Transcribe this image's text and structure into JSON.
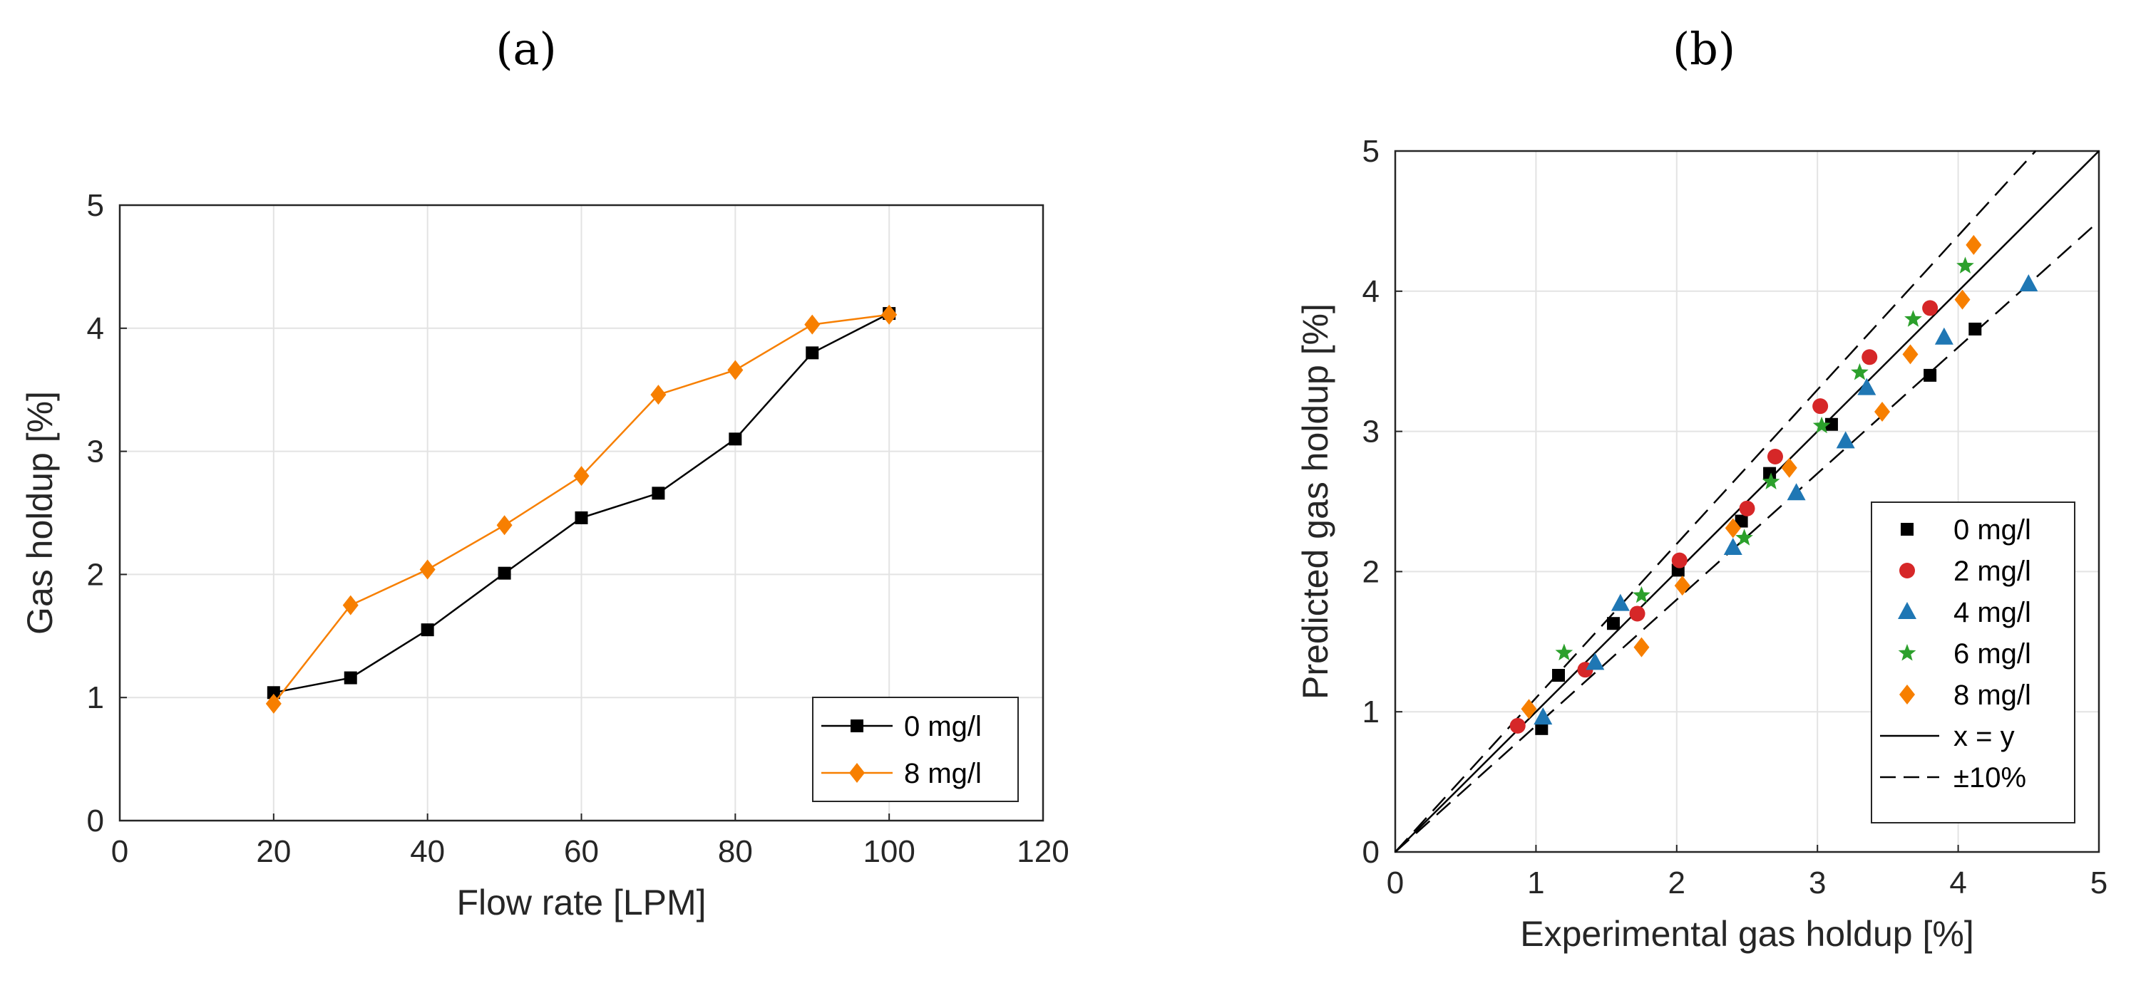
{
  "panels": {
    "a": "(a)",
    "b": "(b)"
  },
  "chart_data": [
    {
      "id": "a",
      "type": "line",
      "title": "",
      "xlabel": "Flow rate [LPM]",
      "ylabel": "Gas holdup [%]",
      "xlim": [
        0,
        120
      ],
      "ylim": [
        0,
        5
      ],
      "xticks": [
        0,
        20,
        40,
        60,
        80,
        100,
        120
      ],
      "yticks": [
        0,
        1,
        2,
        3,
        4,
        5
      ],
      "xtick_labels": [
        "0",
        "20",
        "40",
        "60",
        "80",
        "100",
        "120"
      ],
      "ytick_labels": [
        "0",
        "1",
        "2",
        "3",
        "4",
        "5"
      ],
      "grid": true,
      "legend_position": "bottom-right",
      "x": [
        20,
        30,
        40,
        50,
        60,
        70,
        80,
        90,
        100
      ],
      "series": [
        {
          "name": "0 mg/l",
          "color": "#000000",
          "marker": "square",
          "values": [
            1.04,
            1.16,
            1.55,
            2.01,
            2.46,
            2.66,
            3.1,
            3.8,
            4.12
          ]
        },
        {
          "name": "8 mg/l",
          "color": "#F77F00",
          "marker": "diamond",
          "values": [
            0.95,
            1.75,
            2.04,
            2.4,
            2.8,
            3.46,
            3.66,
            4.03,
            4.11
          ]
        }
      ]
    },
    {
      "id": "b",
      "type": "scatter",
      "title": "",
      "xlabel": "Experimental gas holdup [%]",
      "ylabel": "Predicted gas holdup [%]",
      "xlim": [
        0,
        5
      ],
      "ylim": [
        0,
        5
      ],
      "xticks": [
        0,
        1,
        2,
        3,
        4,
        5
      ],
      "yticks": [
        0,
        1,
        2,
        3,
        4,
        5
      ],
      "xtick_labels": [
        "0",
        "1",
        "2",
        "3",
        "4",
        "5"
      ],
      "ytick_labels": [
        "0",
        "1",
        "2",
        "3",
        "4",
        "5"
      ],
      "grid": true,
      "legend_position": "bottom-right",
      "series": [
        {
          "name": "0 mg/l",
          "color": "#000000",
          "marker": "square",
          "x": [
            1.04,
            1.16,
            1.55,
            2.01,
            2.46,
            2.66,
            3.1,
            3.8,
            4.12
          ],
          "y": [
            0.88,
            1.26,
            1.63,
            2.01,
            2.36,
            2.7,
            3.05,
            3.4,
            3.73
          ]
        },
        {
          "name": "2 mg/l",
          "color": "#D62728",
          "marker": "circle",
          "x": [
            0.87,
            1.35,
            1.72,
            2.02,
            2.5,
            2.7,
            3.02,
            3.37,
            3.8
          ],
          "y": [
            0.9,
            1.3,
            1.7,
            2.08,
            2.45,
            2.82,
            3.18,
            3.53,
            3.88
          ]
        },
        {
          "name": "4 mg/l",
          "color": "#1F77B4",
          "marker": "triangle",
          "x": [
            1.05,
            1.42,
            1.6,
            2.4,
            2.85,
            3.2,
            3.35,
            3.9,
            4.5
          ],
          "y": [
            0.96,
            1.35,
            1.77,
            2.17,
            2.56,
            2.93,
            3.31,
            3.67,
            4.05
          ]
        },
        {
          "name": "6 mg/l",
          "color": "#2CA02C",
          "marker": "star",
          "x": [
            1.2,
            1.75,
            2.48,
            2.67,
            3.03,
            3.3,
            3.68,
            4.05
          ],
          "y": [
            1.42,
            1.83,
            2.24,
            2.64,
            3.04,
            3.42,
            3.8,
            4.18
          ]
        },
        {
          "name": "8 mg/l",
          "color": "#F77F00",
          "marker": "diamond",
          "x": [
            0.95,
            1.75,
            2.04,
            2.4,
            2.8,
            3.46,
            3.66,
            4.03,
            4.11
          ],
          "y": [
            1.02,
            1.46,
            1.9,
            2.31,
            2.74,
            3.14,
            3.55,
            3.94,
            4.33
          ]
        }
      ],
      "lines": [
        {
          "name": "x = y",
          "style": "solid",
          "color": "#000000",
          "slope": 1.0,
          "from": [
            0,
            0
          ],
          "to": [
            5,
            5
          ]
        },
        {
          "name": "±10%",
          "style": "dashed",
          "color": "#000000",
          "slope": 1.1,
          "from": [
            0,
            0
          ],
          "to": [
            4.55,
            5
          ]
        },
        {
          "name": "",
          "style": "dashed",
          "color": "#000000",
          "slope": 0.9,
          "from": [
            0,
            0
          ],
          "to": [
            5,
            4.5
          ]
        }
      ]
    }
  ]
}
